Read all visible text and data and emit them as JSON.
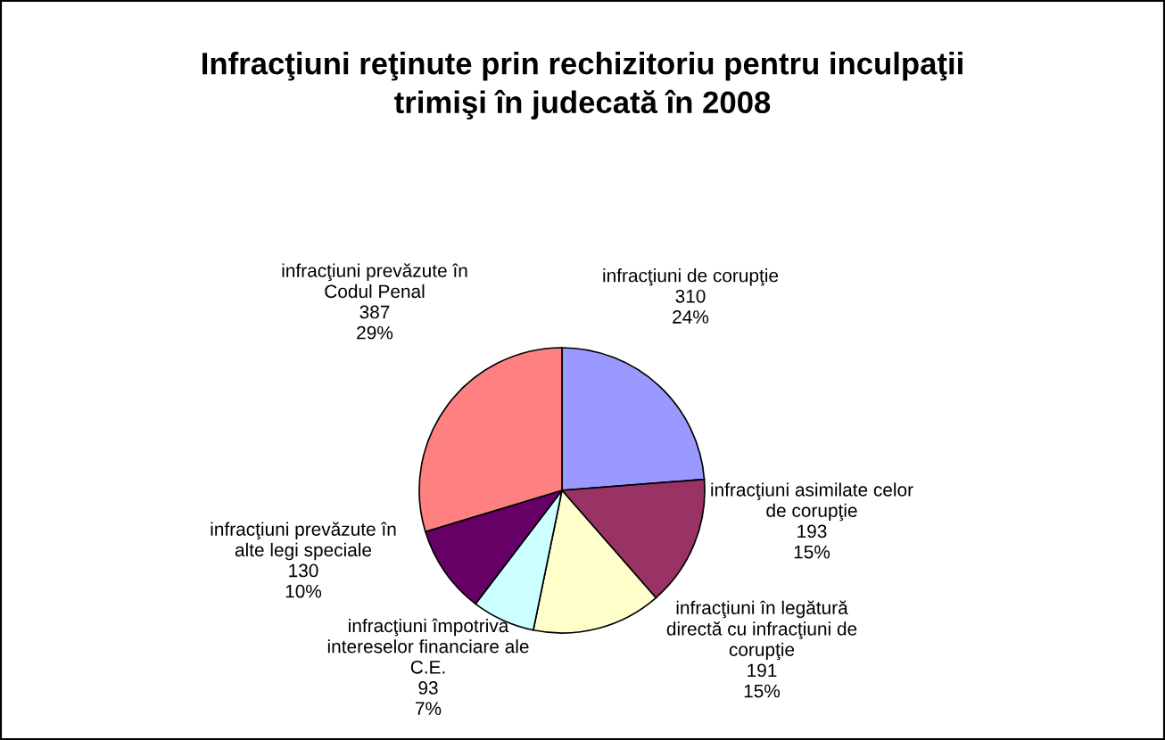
{
  "chart_data": {
    "type": "pie",
    "title": "Infracţiuni reţinute prin rechizitoriu pentru inculpaţii trimişi în judecată în 2008",
    "categories": [
      "infracţiuni de corupţie",
      "infracţiuni asimilate celor de corupţie",
      "infracţiuni în legătură directă cu infracţiuni de corupţie",
      "infracţiuni împotriva intereselor financiare ale C.E.",
      "infracţiuni prevăzute în alte legi speciale",
      "infracţiuni prevăzute în Codul Penal"
    ],
    "values": [
      310,
      193,
      191,
      93,
      130,
      387
    ],
    "value_labels": [
      "310\n24%",
      "193\n15%",
      "191\n15%",
      "93\n7%",
      "130\n10%",
      "387\n29%"
    ],
    "colors": [
      "#9999ff",
      "#993366",
      "#ffffcc",
      "#ccffff",
      "#660066",
      "#ff8080"
    ],
    "legend": false
  }
}
